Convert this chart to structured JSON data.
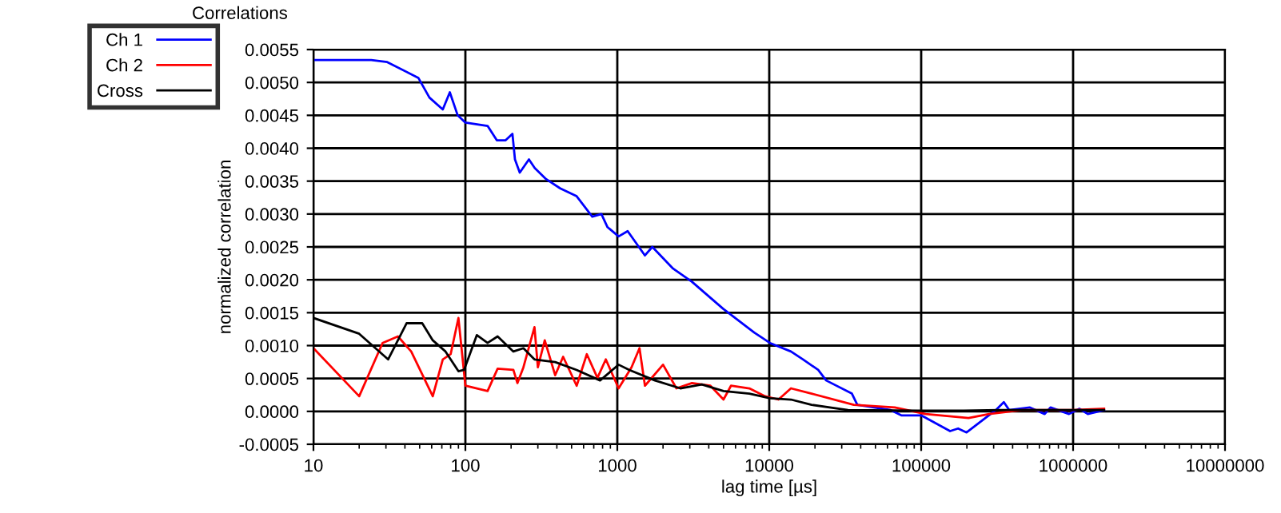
{
  "chart_data": {
    "type": "line",
    "title": "Correlations",
    "xlabel": "lag time [µs]",
    "ylabel": "normalized correlation",
    "log": "x",
    "grid": true,
    "legend": "left",
    "marker": "none",
    "line_style": "solid",
    "xlim": [
      10,
      10000000
    ],
    "xticks": [
      10,
      100,
      1000,
      10000,
      100000,
      1000000,
      10000000
    ],
    "ylim": [
      -0.0005,
      0.0055
    ],
    "yticks": [
      {
        "value": -0.0005,
        "label": "-0.0005"
      },
      {
        "value": 0,
        "label": "0.0000"
      },
      0.0005,
      {
        "value": 0.001,
        "label": "0.0010"
      },
      0.0015,
      {
        "value": 0.002,
        "label": "0.0020"
      },
      0.0025,
      {
        "value": 0.003,
        "label": "0.0030"
      },
      0.0035,
      {
        "value": 0.004,
        "label": "0.0040"
      },
      0.0045,
      {
        "value": 0.005,
        "label": "0.0050"
      },
      0.0055
    ],
    "series": [
      {
        "name": "Ch 1",
        "color": "#0000ff",
        "x": [
          10,
          24,
          30.6,
          49,
          58,
          71,
          79,
          89,
          100,
          140,
          161,
          184,
          204,
          212,
          228,
          262,
          286,
          340,
          421,
          540,
          684,
          786,
          862,
          1020,
          1170,
          1520,
          1700,
          2330,
          3100,
          4970,
          7960,
          10100,
          13900,
          16700,
          21000,
          23700,
          35000,
          38000,
          63000,
          74000,
          100000,
          155000,
          175000,
          199000,
          310000,
          350000,
          380000,
          520000,
          650000,
          710000,
          940000,
          1100000,
          1250000,
          1600000
        ],
        "values": [
          0.00534,
          0.00534,
          0.00531,
          0.00507,
          0.00477,
          0.00459,
          0.00485,
          0.0045,
          0.00439,
          0.00434,
          0.00412,
          0.00412,
          0.00422,
          0.00383,
          0.00363,
          0.00383,
          0.0037,
          0.00353,
          0.00339,
          0.00327,
          0.00296,
          0.003,
          0.0028,
          0.00266,
          0.00274,
          0.00237,
          0.0025,
          0.00217,
          0.00197,
          0.00156,
          0.0012,
          0.00104,
          0.00091,
          0.00079,
          0.00063,
          0.00047,
          0.00027,
          0.0001,
          2e-05,
          -6e-05,
          -6e-05,
          -0.0003,
          -0.00026,
          -0.00032,
          2e-05,
          0.00014,
          2e-05,
          6e-05,
          -4e-05,
          6e-05,
          -4e-05,
          4e-05,
          -4e-05,
          2e-05
        ]
      },
      {
        "name": "Ch 2",
        "color": "#ff0000",
        "x": [
          10,
          20,
          28.5,
          36,
          44,
          61,
          71,
          80,
          90,
          100,
          140,
          163,
          207,
          220,
          241,
          285,
          300,
          333,
          390,
          440,
          540,
          630,
          740,
          840,
          1020,
          1240,
          1400,
          1520,
          2000,
          2450,
          3100,
          4100,
          5000,
          5600,
          7400,
          9400,
          11500,
          13900,
          19000,
          36000,
          67000,
          107000,
          205000,
          280000,
          460000,
          1000000,
          1600000
        ],
        "values": [
          0.00096,
          0.00023,
          0.00104,
          0.00114,
          0.00091,
          0.00023,
          0.00079,
          0.00087,
          0.00142,
          0.00039,
          0.00031,
          0.00065,
          0.00063,
          0.00043,
          0.00067,
          0.00128,
          0.00067,
          0.00108,
          0.00055,
          0.00083,
          0.00039,
          0.00087,
          0.00051,
          0.00079,
          0.00035,
          0.00067,
          0.00096,
          0.00039,
          0.00071,
          0.00035,
          0.00043,
          0.00039,
          0.00018,
          0.00039,
          0.00035,
          0.00023,
          0.00018,
          0.00035,
          0.00027,
          0.0001,
          6e-05,
          -4e-05,
          -0.0001,
          -4e-05,
          2e-05,
          2e-05,
          4e-05
        ]
      },
      {
        "name": "Cross",
        "color": "#000000",
        "x": [
          10,
          20,
          31,
          41,
          52,
          61,
          74,
          90,
          98,
          119,
          140,
          163,
          207,
          241,
          285,
          390,
          540,
          770,
          1020,
          1200,
          1770,
          2600,
          3600,
          5000,
          7400,
          10100,
          13900,
          19000,
          33000,
          95000,
          190000,
          330000,
          1000000,
          1600000
        ],
        "values": [
          0.00142,
          0.00118,
          0.00079,
          0.00134,
          0.00134,
          0.00108,
          0.00091,
          0.00061,
          0.00063,
          0.00116,
          0.00104,
          0.00114,
          0.00091,
          0.00096,
          0.00079,
          0.00075,
          0.00063,
          0.00047,
          0.00071,
          0.00063,
          0.00047,
          0.00035,
          0.00041,
          0.00031,
          0.00027,
          0.0002,
          0.00018,
          0.0001,
          2e-05,
          1e-05,
          1e-05,
          2e-05,
          2e-05,
          2e-05
        ]
      }
    ]
  }
}
